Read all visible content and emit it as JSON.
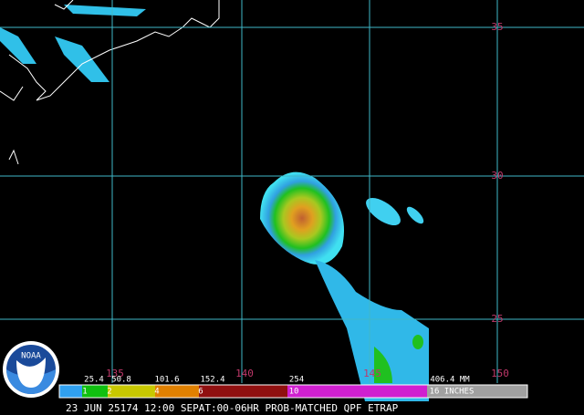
{
  "map": {
    "latitude_labels": [
      "35",
      "30",
      "25"
    ],
    "longitude_labels": [
      "135",
      "140",
      "145",
      "150"
    ]
  },
  "legend": {
    "mm_labels": [
      "25.4",
      "50.8",
      "101.6",
      "152.4",
      "254",
      "406.4 MM"
    ],
    "inch_labels": [
      "1",
      "2",
      "4",
      "6",
      "10",
      "16 INCHES"
    ]
  },
  "caption": "23 JUN 25174 12:00 SEPAT:00-06HR PROB-MATCHED QPF ETRAP",
  "logo": "NOAA"
}
